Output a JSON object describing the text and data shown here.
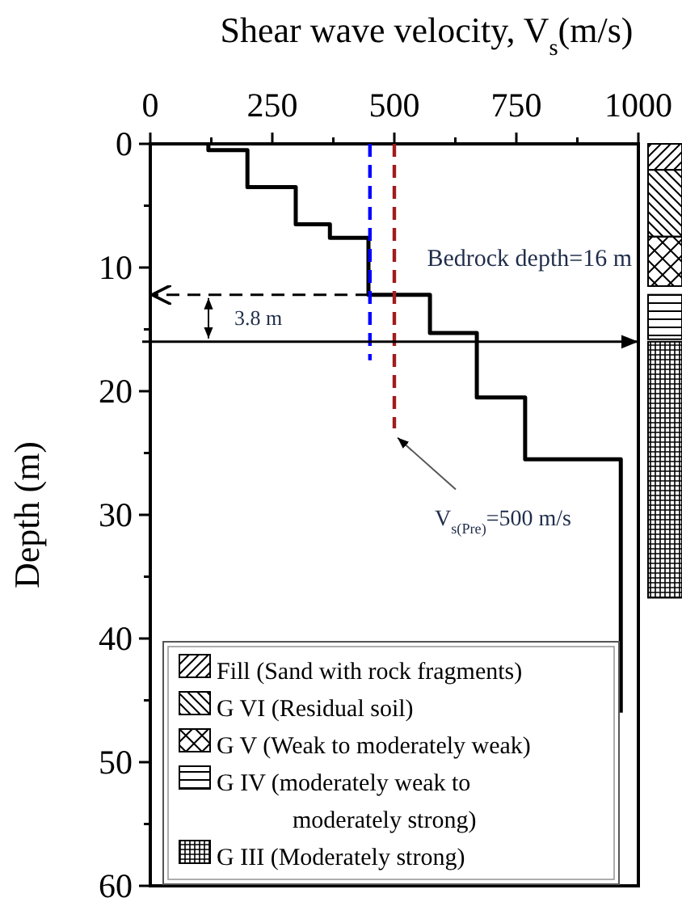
{
  "chart_data": {
    "type": "line",
    "xlabel": "Shear wave velocity, V$_{s}$(m/s)",
    "ylabel": "Depth (m)",
    "xlim": [
      0,
      1000
    ],
    "xticks": [
      0,
      {
        "value": 125,
        "label": null
      },
      250,
      {
        "value": 375,
        "label": null
      },
      500,
      {
        "value": 625,
        "label": null
      },
      750,
      {
        "value": 875,
        "label": null
      },
      1000
    ],
    "ylim": [
      60,
      0
    ],
    "yticks": [
      0,
      {
        "value": 5,
        "label": null
      },
      10,
      {
        "value": 15,
        "label": null
      },
      20,
      {
        "value": 25,
        "label": null
      },
      30,
      {
        "value": 35,
        "label": null
      },
      40,
      {
        "value": 45,
        "label": null
      },
      50,
      {
        "value": 55,
        "label": null
      },
      60
    ],
    "series": [
      {
        "color": "#000000",
        "x": [
          119,
          119,
          199,
          199,
          298,
          298,
          368,
          368,
          447,
          447,
          573,
          573,
          669,
          669,
          768,
          768,
          964,
          964
        ],
        "values": [
          0,
          0.5,
          0.5,
          3.5,
          3.5,
          6.5,
          6.5,
          7.6,
          7.6,
          12.2,
          12.2,
          15.3,
          15.3,
          20.5,
          20.5,
          25.5,
          25.5,
          46
        ]
      },
      {
        "color": "#0000ff",
        "line_style": "dashed",
        "x": [
          450,
          450
        ],
        "values": [
          0,
          17.5
        ]
      },
      {
        "color": "#a01c1c",
        "line_style": "dashed",
        "x": [
          500,
          500
        ],
        "values": [
          0,
          23
        ]
      }
    ],
    "ref_lines": [
      {
        "axis": "y",
        "value": 12.2,
        "line_style": "dashed",
        "label": null
      },
      {
        "axis": "y",
        "value": 16,
        "label": "Bedrock depth=16 m"
      }
    ],
    "annotations": [
      "3.8 m",
      {
        "text": "V$_{s(Pre)}$=500 m/s",
        "x": 500,
        "y": 23.5
      },
      "Fill (Sand with rock fragments)",
      "G VI (Residual soil)",
      "G V (Weak to moderately weak)",
      "G IV (moderately weak to moderately strong)",
      "G III (Moderately strong)"
    ],
    "line_style": "solid"
  }
}
